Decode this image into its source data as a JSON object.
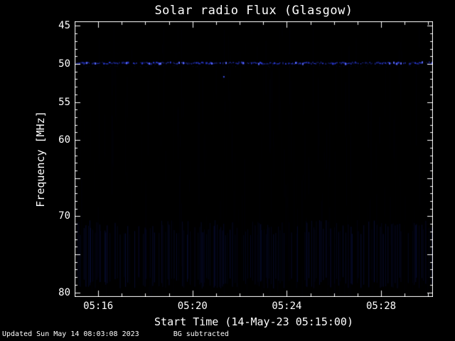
{
  "page": {
    "background": "#000000",
    "text_color": "#ffffff"
  },
  "footer": {
    "updated": "Updated Sun May 14 08:03:08 2023",
    "note": "BG subtracted"
  },
  "chart_data": {
    "type": "heatmap",
    "title": "Solar radio Flux (Glasgow)",
    "xlabel": "Start Time (14-May-23 05:15:00)",
    "ylabel": "Frequency [MHz]",
    "x_start_time": "05:15:00",
    "x_range_minutes": [
      0,
      15.2
    ],
    "y_range_mhz": [
      44.4,
      80.6
    ],
    "y_axis_direction": "inverted (45 MHz at top, 80 MHz at bottom)",
    "x_ticks": [
      {
        "minute": 1,
        "label": "05:16"
      },
      {
        "minute": 5,
        "label": "05:20"
      },
      {
        "minute": 9,
        "label": "05:24"
      },
      {
        "minute": 13,
        "label": "05:28"
      }
    ],
    "x_minor_tick_every_minutes": 1,
    "y_ticks": [
      {
        "mhz": 45,
        "label": "45"
      },
      {
        "mhz": 50,
        "label": "50"
      },
      {
        "mhz": 55,
        "label": "55"
      },
      {
        "mhz": 60,
        "label": "60"
      },
      {
        "mhz": 70,
        "label": "70"
      },
      {
        "mhz": 80,
        "label": "80"
      }
    ],
    "y_major_tick_every_mhz": 5,
    "y_minor_tick_every_mhz": 1,
    "colors": {
      "axis": "#ffffff",
      "plot_background": "#000000"
    },
    "features": {
      "emission_band": {
        "freq_mhz": 49.9,
        "width_mhz": 0.6,
        "color": "#2b3ce0",
        "bright_color": "#5a6aff",
        "extent": "continuous intermittent dashed band across full time range 05:15-05:30"
      },
      "isolated_point": {
        "minute": 6.3,
        "freq_mhz": 51.6,
        "color": "#4356ff"
      },
      "low_freq_striations": {
        "freq_range_mhz": [
          70.5,
          79.5
        ],
        "color": "#141f7d",
        "description": "faint vertical striations across full time range"
      },
      "background_noise": {
        "color": "#10184f",
        "description": "very faint columnar blue noise scattered over whole spectrogram"
      }
    }
  }
}
